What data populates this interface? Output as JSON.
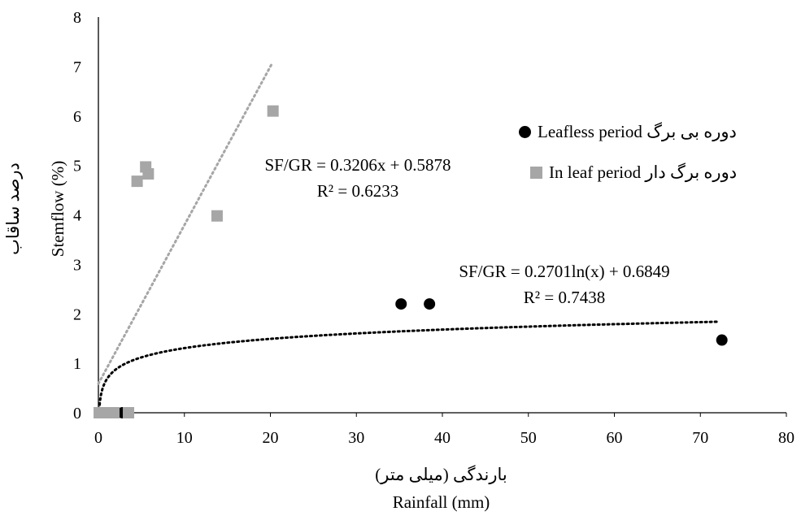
{
  "chart_data": {
    "type": "scatter",
    "xlim": [
      0,
      80
    ],
    "ylim": [
      0,
      8
    ],
    "x_ticks": [
      "0",
      "10",
      "20",
      "30",
      "40",
      "50",
      "60",
      "70",
      "80"
    ],
    "y_ticks": [
      "0",
      "1",
      "2",
      "3",
      "4",
      "5",
      "6",
      "7",
      "8"
    ],
    "xlabel_fa": "بارندگی (میلی متر)",
    "xlabel_en": "Rainfall (mm)",
    "ylabel_fa": "درصد ساقاب",
    "ylabel_en": "Stemflow (%)",
    "grid": false,
    "legend_position": "right",
    "series": [
      {
        "name": "Leafless period دوره بی برگ",
        "marker": "circle",
        "color": "#000000",
        "points": [
          [
            0.2,
            0
          ],
          [
            1.5,
            0
          ],
          [
            2.8,
            0
          ],
          [
            35.2,
            2.2
          ],
          [
            38.5,
            2.2
          ],
          [
            72.5,
            1.47
          ]
        ],
        "trendline": {
          "type": "log",
          "a": 0.2701,
          "b": 0.6849,
          "x_range": [
            0.1,
            72.2
          ],
          "color": "#000000",
          "equation": "SF/GR = 0.2701ln(x) + 0.6849",
          "r2": "R² = 0.7438"
        }
      },
      {
        "name": "In leaf period دوره برگ دار",
        "marker": "square",
        "color": "#a6a6a6",
        "points": [
          [
            0.1,
            0
          ],
          [
            0.8,
            0
          ],
          [
            1.8,
            0
          ],
          [
            3.5,
            0
          ],
          [
            4.5,
            4.68
          ],
          [
            5.5,
            4.97
          ],
          [
            5.8,
            4.83
          ],
          [
            13.8,
            3.98
          ],
          [
            20.3,
            6.1
          ]
        ],
        "trendline": {
          "type": "linear",
          "a": 0.3206,
          "b": 0.5878,
          "x_range": [
            0,
            20.2
          ],
          "color": "#a6a6a6",
          "equation": "SF/GR = 0.3206x + 0.5878",
          "r2": "R² = 0.6233"
        }
      }
    ]
  },
  "legend": {
    "leafless_label": "دوره بی برگ Leafless period",
    "inleaf_label": "دوره برگ دار In leaf period"
  }
}
